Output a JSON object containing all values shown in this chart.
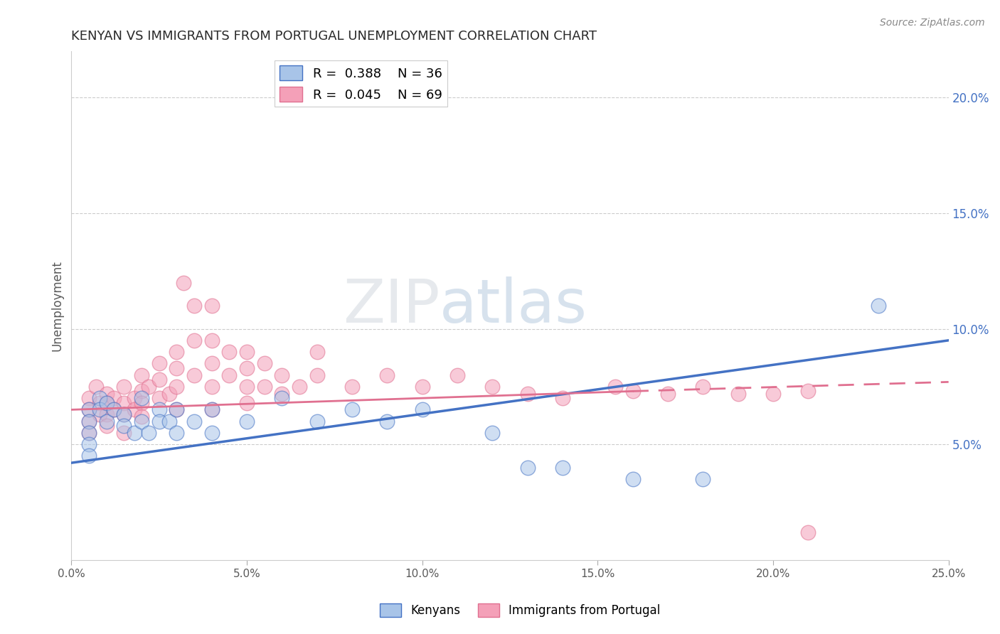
{
  "title": "KENYAN VS IMMIGRANTS FROM PORTUGAL UNEMPLOYMENT CORRELATION CHART",
  "source": "Source: ZipAtlas.com",
  "ylabel": "Unemployment",
  "xlim": [
    0.0,
    0.25
  ],
  "ylim": [
    0.0,
    0.22
  ],
  "xticks": [
    0.0,
    0.05,
    0.1,
    0.15,
    0.2,
    0.25
  ],
  "xtick_labels": [
    "0.0%",
    "5.0%",
    "10.0%",
    "15.0%",
    "20.0%",
    "25.0%"
  ],
  "yticks_right": [
    0.05,
    0.1,
    0.15,
    0.2
  ],
  "ytick_labels_right": [
    "5.0%",
    "10.0%",
    "15.0%",
    "20.0%"
  ],
  "legend_entries": [
    {
      "label": "R =  0.388    N = 36",
      "color": "#a8c4e8"
    },
    {
      "label": "R =  0.045    N = 69",
      "color": "#f4a0b8"
    }
  ],
  "kenyan_scatter": [
    [
      0.005,
      0.065
    ],
    [
      0.005,
      0.06
    ],
    [
      0.005,
      0.055
    ],
    [
      0.005,
      0.05
    ],
    [
      0.008,
      0.07
    ],
    [
      0.008,
      0.065
    ],
    [
      0.01,
      0.068
    ],
    [
      0.01,
      0.06
    ],
    [
      0.012,
      0.065
    ],
    [
      0.015,
      0.063
    ],
    [
      0.015,
      0.058
    ],
    [
      0.018,
      0.055
    ],
    [
      0.02,
      0.07
    ],
    [
      0.02,
      0.06
    ],
    [
      0.022,
      0.055
    ],
    [
      0.025,
      0.065
    ],
    [
      0.025,
      0.06
    ],
    [
      0.028,
      0.06
    ],
    [
      0.03,
      0.065
    ],
    [
      0.03,
      0.055
    ],
    [
      0.035,
      0.06
    ],
    [
      0.04,
      0.065
    ],
    [
      0.04,
      0.055
    ],
    [
      0.05,
      0.06
    ],
    [
      0.06,
      0.07
    ],
    [
      0.07,
      0.06
    ],
    [
      0.08,
      0.065
    ],
    [
      0.09,
      0.06
    ],
    [
      0.1,
      0.065
    ],
    [
      0.12,
      0.055
    ],
    [
      0.13,
      0.04
    ],
    [
      0.14,
      0.04
    ],
    [
      0.16,
      0.035
    ],
    [
      0.18,
      0.035
    ],
    [
      0.23,
      0.11
    ],
    [
      0.005,
      0.045
    ]
  ],
  "portugal_scatter": [
    [
      0.005,
      0.07
    ],
    [
      0.005,
      0.065
    ],
    [
      0.005,
      0.06
    ],
    [
      0.005,
      0.055
    ],
    [
      0.007,
      0.075
    ],
    [
      0.008,
      0.068
    ],
    [
      0.008,
      0.063
    ],
    [
      0.01,
      0.072
    ],
    [
      0.01,
      0.068
    ],
    [
      0.01,
      0.063
    ],
    [
      0.01,
      0.058
    ],
    [
      0.012,
      0.07
    ],
    [
      0.012,
      0.065
    ],
    [
      0.015,
      0.075
    ],
    [
      0.015,
      0.068
    ],
    [
      0.015,
      0.063
    ],
    [
      0.015,
      0.055
    ],
    [
      0.018,
      0.07
    ],
    [
      0.018,
      0.065
    ],
    [
      0.02,
      0.08
    ],
    [
      0.02,
      0.073
    ],
    [
      0.02,
      0.068
    ],
    [
      0.02,
      0.062
    ],
    [
      0.022,
      0.075
    ],
    [
      0.025,
      0.085
    ],
    [
      0.025,
      0.078
    ],
    [
      0.025,
      0.07
    ],
    [
      0.028,
      0.072
    ],
    [
      0.03,
      0.09
    ],
    [
      0.03,
      0.083
    ],
    [
      0.03,
      0.075
    ],
    [
      0.03,
      0.065
    ],
    [
      0.032,
      0.12
    ],
    [
      0.035,
      0.11
    ],
    [
      0.035,
      0.095
    ],
    [
      0.035,
      0.08
    ],
    [
      0.04,
      0.11
    ],
    [
      0.04,
      0.095
    ],
    [
      0.04,
      0.085
    ],
    [
      0.04,
      0.075
    ],
    [
      0.04,
      0.065
    ],
    [
      0.045,
      0.09
    ],
    [
      0.045,
      0.08
    ],
    [
      0.05,
      0.09
    ],
    [
      0.05,
      0.083
    ],
    [
      0.05,
      0.075
    ],
    [
      0.05,
      0.068
    ],
    [
      0.055,
      0.085
    ],
    [
      0.055,
      0.075
    ],
    [
      0.06,
      0.08
    ],
    [
      0.06,
      0.072
    ],
    [
      0.065,
      0.075
    ],
    [
      0.07,
      0.09
    ],
    [
      0.07,
      0.08
    ],
    [
      0.08,
      0.075
    ],
    [
      0.09,
      0.08
    ],
    [
      0.1,
      0.075
    ],
    [
      0.11,
      0.08
    ],
    [
      0.12,
      0.075
    ],
    [
      0.13,
      0.072
    ],
    [
      0.14,
      0.07
    ],
    [
      0.155,
      0.075
    ],
    [
      0.16,
      0.073
    ],
    [
      0.17,
      0.072
    ],
    [
      0.18,
      0.075
    ],
    [
      0.19,
      0.072
    ],
    [
      0.2,
      0.072
    ],
    [
      0.21,
      0.073
    ],
    [
      0.21,
      0.012
    ]
  ],
  "kenyan_line": {
    "x0": 0.0,
    "y0": 0.042,
    "x1": 0.25,
    "y1": 0.095
  },
  "portugal_line_solid": {
    "x0": 0.0,
    "y0": 0.065,
    "x1": 0.16,
    "y1": 0.073
  },
  "portugal_line_dash": {
    "x0": 0.16,
    "y0": 0.073,
    "x1": 0.25,
    "y1": 0.077
  },
  "kenyan_line_color": "#4472c4",
  "portugal_line_color": "#e07090",
  "kenyan_scatter_color": "#a8c4e8",
  "portugal_scatter_color": "#f4a0b8",
  "background_color": "#ffffff",
  "watermark_zip": "ZIP",
  "watermark_atlas": "atlas",
  "title_fontsize": 13,
  "tick_color_right": "#4472c4"
}
